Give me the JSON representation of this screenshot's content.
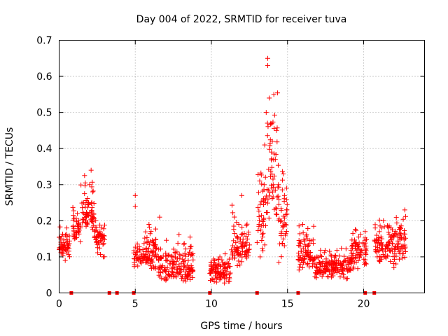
{
  "chart_data": {
    "type": "scatter",
    "title": "Day 004 of 2022, SRMTID for receiver tuva",
    "xlabel": "GPS time / hours",
    "ylabel": "SRMTID / TECUs",
    "xlim": [
      0,
      24
    ],
    "ylim": [
      0,
      0.7
    ],
    "xticks": [
      0,
      5,
      10,
      15,
      20
    ],
    "xtick_labels": [
      "0",
      "5",
      "10",
      "15",
      "20"
    ],
    "yticks": [
      0,
      0.1,
      0.2,
      0.3,
      0.4,
      0.5,
      0.6,
      0.7
    ],
    "ytick_labels": [
      "0",
      "0.1",
      "0.2",
      "0.3",
      "0.4",
      "0.5",
      "0.6",
      "0.7"
    ],
    "grid": true,
    "marker": "plus",
    "color": "#ff0000",
    "series": [
      {
        "name": "SRMTID",
        "envelope": [
          {
            "x": [
              0.0,
              0.7
            ],
            "lo": 0.09,
            "hi": 0.19,
            "mid": 0.13
          },
          {
            "x": [
              0.9,
              1.4
            ],
            "lo": 0.13,
            "hi": 0.25,
            "mid": 0.17
          },
          {
            "x": [
              1.4,
              2.3
            ],
            "lo": 0.15,
            "hi": 0.34,
            "mid": 0.22
          },
          {
            "x": [
              2.3,
              3.0
            ],
            "lo": 0.09,
            "hi": 0.21,
            "mid": 0.15
          },
          {
            "x": [
              4.9,
              6.5
            ],
            "lo": 0.05,
            "hi": 0.2,
            "mid": 0.1
          },
          {
            "x": [
              6.5,
              8.8
            ],
            "lo": 0.02,
            "hi": 0.17,
            "mid": 0.07
          },
          {
            "x": [
              9.9,
              11.3
            ],
            "lo": 0.02,
            "hi": 0.12,
            "mid": 0.06
          },
          {
            "x": [
              11.3,
              12.5
            ],
            "lo": 0.06,
            "hi": 0.27,
            "mid": 0.13
          },
          {
            "x": [
              13.0,
              13.6
            ],
            "lo": 0.05,
            "hi": 0.44,
            "mid": 0.2
          },
          {
            "x": [
              13.6,
              14.4
            ],
            "lo": 0.1,
            "hi": 0.65,
            "mid": 0.33
          },
          {
            "x": [
              14.4,
              15.0
            ],
            "lo": 0.06,
            "hi": 0.37,
            "mid": 0.2
          },
          {
            "x": [
              15.7,
              16.8
            ],
            "lo": 0.05,
            "hi": 0.22,
            "mid": 0.1
          },
          {
            "x": [
              16.8,
              19.2
            ],
            "lo": 0.03,
            "hi": 0.13,
            "mid": 0.07
          },
          {
            "x": [
              19.2,
              20.2
            ],
            "lo": 0.05,
            "hi": 0.2,
            "mid": 0.11
          },
          {
            "x": [
              20.7,
              22.8
            ],
            "lo": 0.06,
            "hi": 0.24,
            "mid": 0.14
          }
        ],
        "points": [
          [
            0.0,
            0.12
          ],
          [
            0.1,
            0.15
          ],
          [
            0.2,
            0.11
          ],
          [
            0.3,
            0.14
          ],
          [
            0.4,
            0.09
          ],
          [
            0.5,
            0.18
          ],
          [
            0.6,
            0.13
          ],
          [
            1.0,
            0.15
          ],
          [
            1.2,
            0.22
          ],
          [
            1.4,
            0.18
          ],
          [
            1.6,
            0.25
          ],
          [
            1.8,
            0.21
          ],
          [
            2.0,
            0.3
          ],
          [
            2.1,
            0.34
          ],
          [
            2.2,
            0.28
          ],
          [
            2.4,
            0.2
          ],
          [
            2.6,
            0.16
          ],
          [
            2.8,
            0.18
          ],
          [
            2.9,
            0.1
          ],
          [
            5.0,
            0.27
          ],
          [
            5.0,
            0.24
          ],
          [
            5.1,
            0.09
          ],
          [
            5.5,
            0.12
          ],
          [
            5.9,
            0.19
          ],
          [
            6.3,
            0.13
          ],
          [
            6.6,
            0.21
          ],
          [
            7.0,
            0.11
          ],
          [
            7.5,
            0.08
          ],
          [
            8.0,
            0.05
          ],
          [
            8.5,
            0.07
          ],
          [
            10.0,
            0.06
          ],
          [
            10.5,
            0.08
          ],
          [
            11.0,
            0.05
          ],
          [
            11.4,
            0.11
          ],
          [
            11.8,
            0.19
          ],
          [
            12.0,
            0.27
          ],
          [
            12.3,
            0.14
          ],
          [
            13.2,
            0.1
          ],
          [
            13.5,
            0.41
          ],
          [
            13.6,
            0.5
          ],
          [
            13.7,
            0.65
          ],
          [
            13.7,
            0.63
          ],
          [
            13.8,
            0.54
          ],
          [
            13.9,
            0.47
          ],
          [
            14.0,
            0.42
          ],
          [
            14.1,
            0.55
          ],
          [
            14.2,
            0.37
          ],
          [
            14.4,
            0.3
          ],
          [
            14.6,
            0.2
          ],
          [
            14.8,
            0.27
          ],
          [
            16.0,
            0.19
          ],
          [
            16.3,
            0.15
          ],
          [
            16.8,
            0.08
          ],
          [
            17.5,
            0.06
          ],
          [
            18.0,
            0.08
          ],
          [
            18.6,
            0.07
          ],
          [
            19.2,
            0.11
          ],
          [
            19.6,
            0.13
          ],
          [
            20.1,
            0.17
          ],
          [
            20.8,
            0.12
          ],
          [
            21.2,
            0.15
          ],
          [
            21.8,
            0.18
          ],
          [
            22.4,
            0.16
          ],
          [
            22.7,
            0.23
          ]
        ]
      }
    ],
    "zero_line_markers_x": [
      0.8,
      3.3,
      3.8,
      4.9,
      9.9,
      13.0,
      15.7,
      20.1,
      20.7
    ]
  }
}
